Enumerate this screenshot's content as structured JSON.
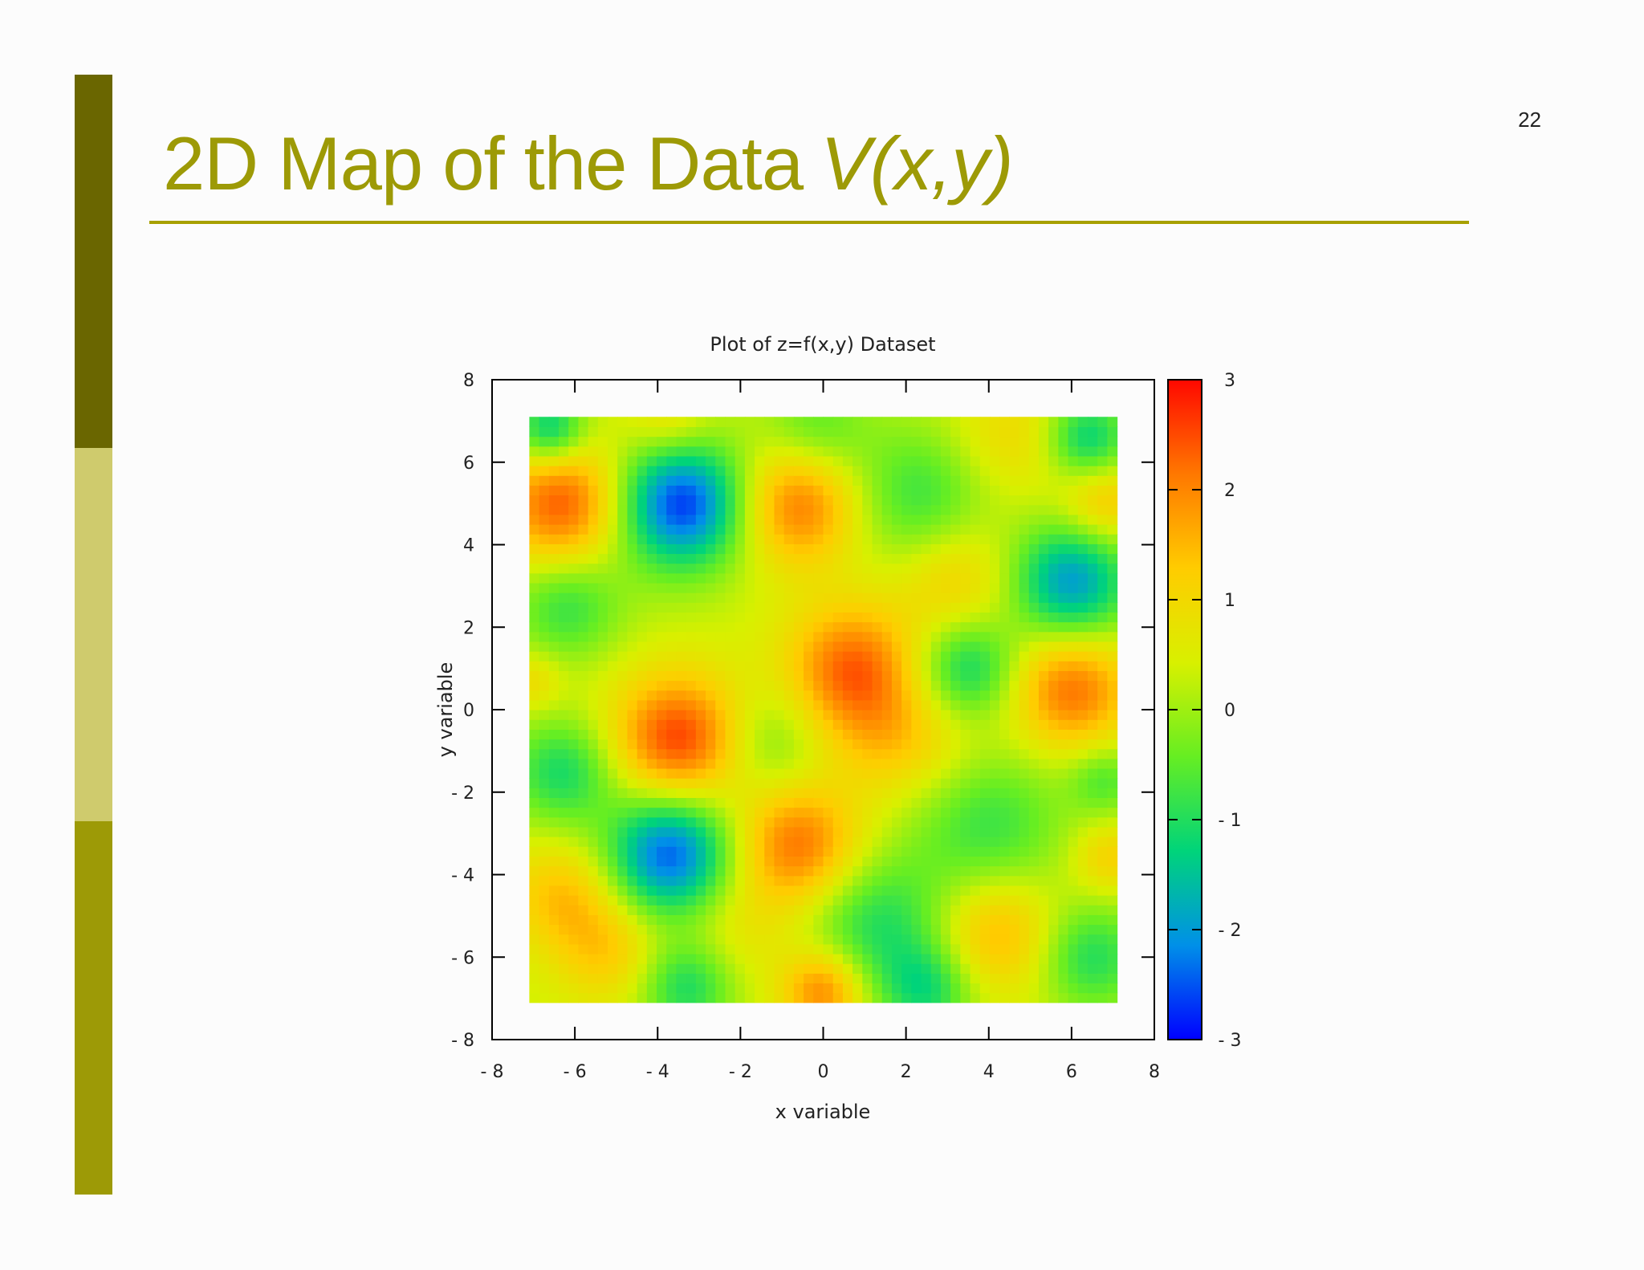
{
  "slide": {
    "number": "22",
    "title": "2D Map of the Data",
    "title_variable": "V(x,y)",
    "colors": {
      "accent": "#9d9a06",
      "bar_top": "#6a6600",
      "bar_mid": "#cfcb6d",
      "bar_bottom": "#9d9a06",
      "rule": "#a7a000"
    }
  },
  "chart_data": {
    "type": "heatmap",
    "title": "Plot of z=f(x,y) Dataset",
    "xlabel": "x variable",
    "ylabel": "y variable",
    "xlim": [
      -8,
      8
    ],
    "ylim": [
      -8,
      8
    ],
    "data_extent": {
      "x": [
        -7.1,
        7.1
      ],
      "y": [
        -7.1,
        7.1
      ]
    },
    "x_ticks": [
      "-8",
      "-6",
      "-4",
      "-2",
      "0",
      "2",
      "4",
      "6",
      "8"
    ],
    "y_ticks": [
      "-8",
      "-6",
      "-4",
      "-2",
      "0",
      "2",
      "4",
      "6",
      "8"
    ],
    "colorbar": {
      "range": [
        -3,
        3
      ],
      "ticks": [
        "-3",
        "-2",
        "-1",
        "0",
        "1",
        "2",
        "3"
      ],
      "colormap": [
        "#0000ff",
        "#0090e8",
        "#00d47a",
        "#66ee22",
        "#d8f000",
        "#ffcc00",
        "#ff7800",
        "#ff0800"
      ]
    },
    "grid": false,
    "features": [
      {
        "x": -6.3,
        "y": 5.0,
        "z": 2.4,
        "r": 1.05
      },
      {
        "x": -3.4,
        "y": 5.0,
        "z": -2.7,
        "r": 1.1
      },
      {
        "x": -0.6,
        "y": 5.0,
        "z": 2.2,
        "r": 1.05
      },
      {
        "x": 2.3,
        "y": 5.2,
        "z": -0.8,
        "r": 1.2
      },
      {
        "x": 4.5,
        "y": 6.6,
        "z": 1.0,
        "r": 1.0
      },
      {
        "x": 6.4,
        "y": 6.6,
        "z": -1.3,
        "r": 0.7
      },
      {
        "x": -6.6,
        "y": 6.8,
        "z": -1.5,
        "r": 0.6
      },
      {
        "x": -3.7,
        "y": 7.0,
        "z": 1.1,
        "r": 0.7
      },
      {
        "x": 6.8,
        "y": 5.0,
        "z": 1.4,
        "r": 0.7
      },
      {
        "x": 3.2,
        "y": 3.2,
        "z": 1.2,
        "r": 1.0
      },
      {
        "x": 6.0,
        "y": 3.1,
        "z": -2.0,
        "r": 1.0
      },
      {
        "x": -6.2,
        "y": 2.5,
        "z": -0.8,
        "r": 0.9
      },
      {
        "x": -5.0,
        "y": 2.8,
        "z": 0.3,
        "r": 1.3
      },
      {
        "x": 0.7,
        "y": 1.0,
        "z": 2.3,
        "r": 1.1
      },
      {
        "x": 1.4,
        "y": -0.7,
        "z": 1.0,
        "r": 1.0
      },
      {
        "x": 2.6,
        "y": -0.8,
        "z": 0.8,
        "r": 1.0
      },
      {
        "x": 3.5,
        "y": 1.0,
        "z": -1.2,
        "r": 0.85
      },
      {
        "x": 6.0,
        "y": 0.5,
        "z": 2.2,
        "r": 1.0
      },
      {
        "x": -7.0,
        "y": 0.7,
        "z": 1.0,
        "r": 0.5
      },
      {
        "x": -3.5,
        "y": -0.7,
        "z": 2.6,
        "r": 1.1
      },
      {
        "x": -1.3,
        "y": -0.8,
        "z": -0.4,
        "r": 0.9
      },
      {
        "x": -6.3,
        "y": -1.5,
        "z": -1.1,
        "r": 0.9
      },
      {
        "x": -3.7,
        "y": -3.5,
        "z": -2.5,
        "r": 1.05
      },
      {
        "x": -0.6,
        "y": -3.3,
        "z": 2.2,
        "r": 1.05
      },
      {
        "x": -6.3,
        "y": -4.5,
        "z": 1.4,
        "r": 0.9
      },
      {
        "x": -5.2,
        "y": -5.8,
        "z": 1.3,
        "r": 0.9
      },
      {
        "x": -2.1,
        "y": -5.3,
        "z": 0.8,
        "r": 1.0
      },
      {
        "x": 1.3,
        "y": -5.2,
        "z": -1.0,
        "r": 1.2
      },
      {
        "x": 4.2,
        "y": -5.4,
        "z": 1.6,
        "r": 1.0
      },
      {
        "x": 4.0,
        "y": -2.8,
        "z": -0.8,
        "r": 1.3
      },
      {
        "x": 6.9,
        "y": -3.6,
        "z": 1.2,
        "r": 0.6
      },
      {
        "x": 6.8,
        "y": -1.7,
        "z": -0.6,
        "r": 0.6
      },
      {
        "x": 6.5,
        "y": -6.0,
        "z": -1.0,
        "r": 0.9
      },
      {
        "x": 0.0,
        "y": -6.8,
        "z": 2.1,
        "r": 0.7
      },
      {
        "x": 2.5,
        "y": -6.8,
        "z": -1.0,
        "r": 0.8
      },
      {
        "x": -3.3,
        "y": -6.7,
        "z": -1.1,
        "r": 0.8
      },
      {
        "x": -0.2,
        "y": 6.8,
        "z": -0.6,
        "r": 0.9
      }
    ]
  }
}
